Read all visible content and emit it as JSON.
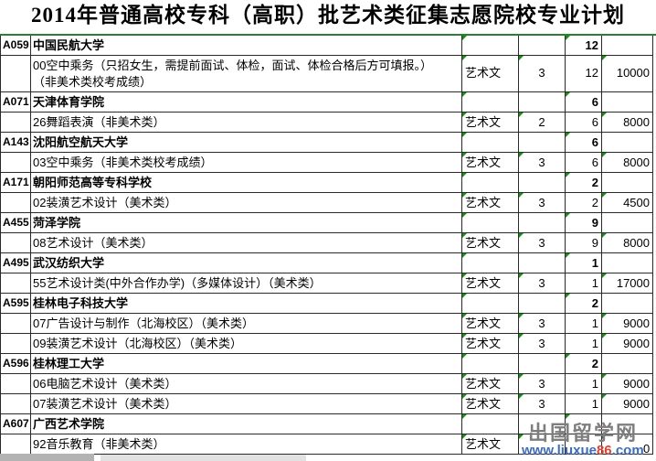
{
  "title": "2014年普通高校专科（高职）批艺术类征集志愿院校专业计划",
  "colors": {
    "accent_green": "#2e7d32",
    "marker_green": "#0e930e",
    "watermark_gray": "#7e7e7e",
    "watermark_blue": "#3b6cc5",
    "watermark_red": "#e2432e"
  },
  "watermark": {
    "site_name": "出国留学网",
    "url_prefix": "www.liuxue",
    "url_highlight": "86",
    "url_suffix": ".com"
  },
  "partial_fee_digit": "0",
  "table": {
    "rows": [
      {
        "type": "institution",
        "code": "A059",
        "name": "中国民航大学",
        "category": "",
        "years": "",
        "plan": "12",
        "fee": ""
      },
      {
        "type": "major",
        "tall": true,
        "code": "",
        "name": "00空中乘务（只招女生，需提前面试、体检，面试、体检合格后方可填报。）\n（非美术类校考成绩）",
        "category": "艺术文",
        "years": "3",
        "plan": "12",
        "fee": "10000"
      },
      {
        "type": "institution",
        "code": "A071",
        "name": "天津体育学院",
        "category": "",
        "years": "",
        "plan": "6",
        "fee": ""
      },
      {
        "type": "major",
        "code": "",
        "name": "26舞蹈表演（非美术类）",
        "category": "艺术文",
        "years": "2",
        "plan": "6",
        "fee": "8000"
      },
      {
        "type": "institution",
        "code": "A143",
        "name": "沈阳航空航天大学",
        "category": "",
        "years": "",
        "plan": "6",
        "fee": ""
      },
      {
        "type": "major",
        "code": "",
        "name": "03空中乘务（非美术类校考成绩）",
        "category": "艺术文",
        "years": "3",
        "plan": "6",
        "fee": "8000"
      },
      {
        "type": "institution",
        "code": "A171",
        "name": "朝阳师范高等专科学校",
        "category": "",
        "years": "",
        "plan": "2",
        "fee": ""
      },
      {
        "type": "major",
        "code": "",
        "name": "02装潢艺术设计（美术类）",
        "category": "艺术文",
        "years": "3",
        "plan": "2",
        "fee": "4500"
      },
      {
        "type": "institution",
        "code": "A455",
        "name": "菏泽学院",
        "category": "",
        "years": "",
        "plan": "9",
        "fee": ""
      },
      {
        "type": "major",
        "code": "",
        "name": "08艺术设计（美术类）",
        "category": "艺术文",
        "years": "3",
        "plan": "9",
        "fee": "8000"
      },
      {
        "type": "institution",
        "code": "A495",
        "name": "武汉纺织大学",
        "category": "",
        "years": "",
        "plan": "1",
        "fee": ""
      },
      {
        "type": "major",
        "code": "",
        "name": "55艺术设计类(中外合作办学)（多媒体设计）（美术类）",
        "category": "艺术文",
        "years": "3",
        "plan": "1",
        "fee": "17000"
      },
      {
        "type": "institution",
        "code": "A595",
        "name": "桂林电子科技大学",
        "category": "",
        "years": "",
        "plan": "2",
        "fee": ""
      },
      {
        "type": "major",
        "code": "",
        "name": "07广告设计与制作（北海校区）（美术类）",
        "category": "艺术文",
        "years": "3",
        "plan": "1",
        "fee": "9000"
      },
      {
        "type": "major",
        "code": "",
        "name": "09装潢艺术设计（北海校区）（美术类）",
        "category": "艺术文",
        "years": "3",
        "plan": "1",
        "fee": "9000"
      },
      {
        "type": "institution",
        "code": "A596",
        "name": "桂林理工大学",
        "category": "",
        "years": "",
        "plan": "2",
        "fee": ""
      },
      {
        "type": "major",
        "code": "",
        "name": "06电脑艺术设计（美术类）",
        "category": "艺术文",
        "years": "3",
        "plan": "1",
        "fee": "9000"
      },
      {
        "type": "major",
        "code": "",
        "name": "07装潢艺术设计（美术类）",
        "category": "艺术文",
        "years": "3",
        "plan": "1",
        "fee": "9000"
      },
      {
        "type": "institution",
        "code": "A607",
        "name": "广西艺术学院",
        "category": "",
        "years": "",
        "plan": "",
        "fee": ""
      },
      {
        "type": "major",
        "code": "",
        "name": "92音乐教育（非美术类）",
        "category": "艺术文",
        "years": "",
        "plan": "",
        "fee": ""
      }
    ]
  }
}
